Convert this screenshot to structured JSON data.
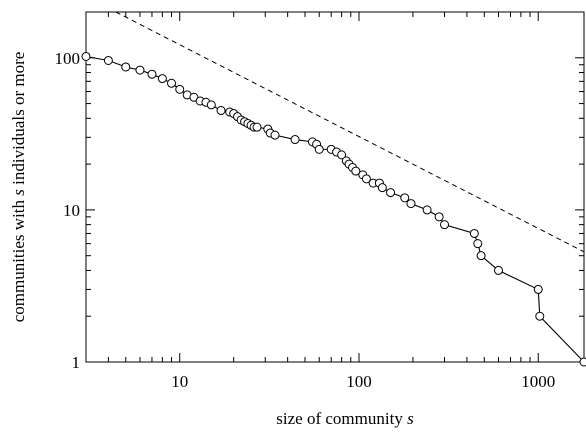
{
  "chart_data": {
    "type": "scatter",
    "xscale": "log",
    "yscale": "log",
    "xlim": [
      3,
      1800
    ],
    "ylim": [
      1,
      200
    ],
    "grid": false,
    "xlabel": "size of community  s",
    "ylabel_parts": [
      "communities with ",
      "s",
      " individuals or more"
    ],
    "x_ticks": [
      {
        "value": 10,
        "label": "10"
      },
      {
        "value": 100,
        "label": "100"
      },
      {
        "value": 1000,
        "label": "1000"
      }
    ],
    "y_ticks": [
      {
        "value": 1,
        "label": "1"
      },
      {
        "value": 10,
        "label": "10"
      },
      {
        "value": 100,
        "label": "100"
      }
    ],
    "series": [
      {
        "style": "solid line with open circle markers",
        "points": [
          [
            3,
            102
          ],
          [
            4,
            96
          ],
          [
            5,
            87
          ],
          [
            6,
            83
          ],
          [
            7,
            78
          ],
          [
            8,
            73
          ],
          [
            9,
            68
          ],
          [
            10,
            62
          ],
          [
            11,
            57
          ],
          [
            12,
            55
          ],
          [
            13,
            52
          ],
          [
            14,
            51
          ],
          [
            15,
            49
          ],
          [
            17,
            45
          ],
          [
            19,
            44
          ],
          [
            20,
            43
          ],
          [
            21,
            41
          ],
          [
            22,
            39
          ],
          [
            23,
            38
          ],
          [
            24,
            37
          ],
          [
            25,
            36
          ],
          [
            26,
            35
          ],
          [
            27,
            35
          ],
          [
            31,
            34
          ],
          [
            32,
            32
          ],
          [
            34,
            31
          ],
          [
            44,
            29
          ],
          [
            55,
            28
          ],
          [
            58,
            27
          ],
          [
            60,
            25
          ],
          [
            70,
            25
          ],
          [
            75,
            24
          ],
          [
            80,
            23
          ],
          [
            85,
            21
          ],
          [
            88,
            20
          ],
          [
            92,
            19
          ],
          [
            96,
            18
          ],
          [
            105,
            17
          ],
          [
            110,
            16
          ],
          [
            120,
            15
          ],
          [
            130,
            15
          ],
          [
            135,
            14
          ],
          [
            150,
            13
          ],
          [
            180,
            12
          ],
          [
            195,
            11
          ],
          [
            240,
            10
          ],
          [
            280,
            9
          ],
          [
            300,
            8
          ],
          [
            440,
            7
          ],
          [
            460,
            6
          ],
          [
            480,
            5
          ],
          [
            600,
            4
          ],
          [
            1000,
            3
          ],
          [
            1020,
            2
          ],
          [
            1800,
            1
          ]
        ]
      },
      {
        "style": "dashed reference line",
        "points": [
          [
            4.4,
            200
          ],
          [
            1800,
            5.3
          ]
        ]
      }
    ]
  }
}
